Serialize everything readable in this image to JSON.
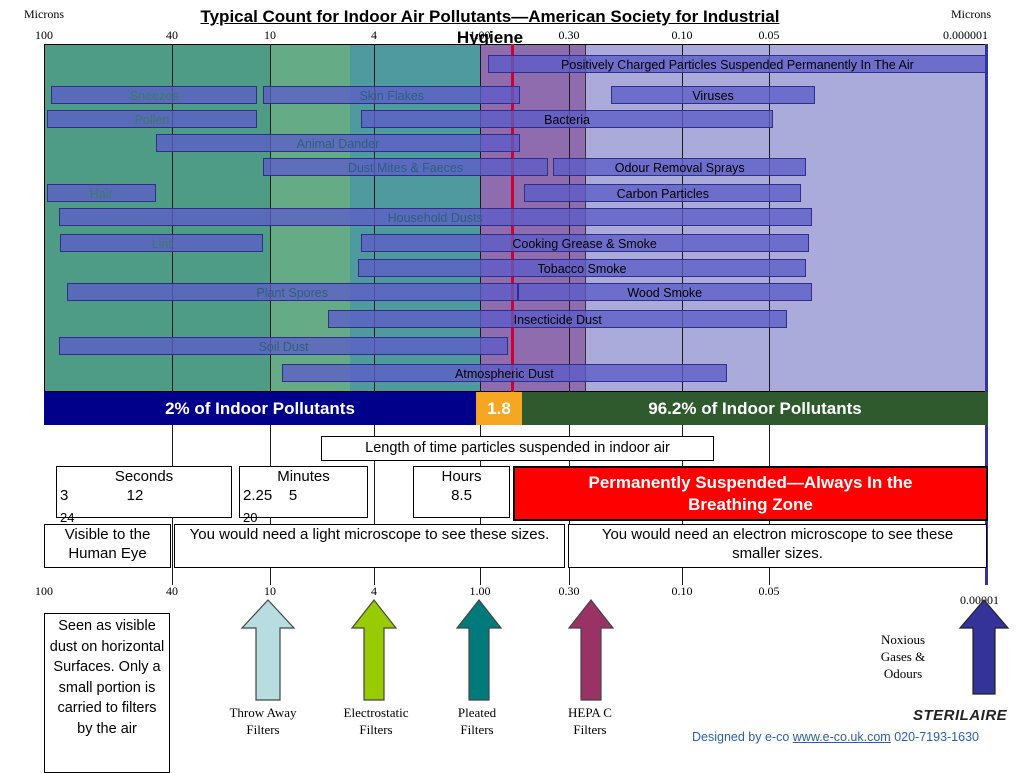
{
  "chart_data": {
    "type": "bar",
    "title": "Typical Count for Indoor Air Pollutants—American Society for Industrial Hygiene",
    "axis_label_left": "Microns",
    "axis_label_right": "Microns",
    "scale": "log",
    "xlim": [
      100,
      1e-06
    ],
    "ticks": [
      {
        "value": 100,
        "label": "100"
      },
      {
        "value": 40,
        "label": "40"
      },
      {
        "value": 10,
        "label": "10"
      },
      {
        "value": 4,
        "label": "4"
      },
      {
        "value": 1,
        "label": "1.00"
      },
      {
        "value": 0.3,
        "label": "0.30"
      },
      {
        "value": 0.1,
        "label": "0.10"
      },
      {
        "value": 0.05,
        "label": "0.05"
      }
    ],
    "right_end_label_top": "0.000001",
    "right_end_label_bottom": "0.00001",
    "series": [
      {
        "name": "Positively Charged Particles Suspended Permanently In The Air",
        "from": 0.9,
        "to": 1e-06
      },
      {
        "name": "Sneezes",
        "from": 95,
        "to": 12
      },
      {
        "name": "Skin Flakes",
        "from": 11,
        "to": 0.58
      },
      {
        "name": "Viruses",
        "from": 0.2,
        "to": 0.005
      },
      {
        "name": "Pollen",
        "from": 98,
        "to": 12
      },
      {
        "name": "Bacteria",
        "from": 4.5,
        "to": 0.04
      },
      {
        "name": "Animal Dander",
        "from": 45,
        "to": 0.58
      },
      {
        "name": "Dust Mites & Faeces",
        "from": 11,
        "to": 0.4
      },
      {
        "name": "Odour Removal Sprays",
        "from": 0.37,
        "to": 0.008
      },
      {
        "name": "Hair",
        "from": 98,
        "to": 45
      },
      {
        "name": "Carbon Particles",
        "from": 0.55,
        "to": 0.01
      },
      {
        "name": "Household Dusts",
        "from": 90,
        "to": 0.006
      },
      {
        "name": "Lint",
        "from": 89,
        "to": 11
      },
      {
        "name": "Cooking Grease & Smoke",
        "from": 4.5,
        "to": 0.007
      },
      {
        "name": "Tobacco Smoke",
        "from": 4.6,
        "to": 0.008
      },
      {
        "name": "Plant Spores",
        "from": 85,
        "to": 0.6
      },
      {
        "name": "Wood Smoke",
        "from": 0.6,
        "to": 0.006
      },
      {
        "name": "Insecticide Dust",
        "from": 6,
        "to": 0.02
      },
      {
        "name": "Soil Dust",
        "from": 90,
        "to": 0.68
      },
      {
        "name": "Atmospheric Dust",
        "from": 9,
        "to": 0.07
      }
    ]
  },
  "shares": {
    "left": "2% of Indoor Pollutants",
    "middle": "1.8",
    "right": "96.2% of Indoor Pollutants"
  },
  "suspension": {
    "header": "Length of time particles suspended in indoor air",
    "seconds_title": "Seconds",
    "seconds_values": "3              12",
    "seconds_overflow": "24",
    "minutes_title": "Minutes",
    "minutes_values": "2.25    5",
    "minutes_overflow": "20",
    "hours_title": "Hours",
    "hours_values": "8.5",
    "permanent": "Permanently Suspended—Always In the Breathing Zone"
  },
  "visibility": {
    "eye": "Visible to the Human Eye",
    "light": "You would need a light microscope to see these sizes.",
    "electron": "You would need an electron microscope to see these smaller sizes."
  },
  "note": "Seen as visible dust on horizontal Surfaces. Only a small portion is carried to filters by the air",
  "filters": {
    "throw": "Throw Away Filters",
    "electrostatic": "Electrostatic Filters",
    "pleated": "Pleated Filters",
    "hepa": "HEPA C Filters",
    "noxious": "Noxious Gases & Odours"
  },
  "colors": {
    "navy_band": "#00008b",
    "orange_band": "#f5a623",
    "green_band": "#2e5a2e",
    "permanent_red": "#ff0000",
    "arrow_throw": "#b8dde0",
    "arrow_electro": "#99cc00",
    "arrow_pleated": "#007a7a",
    "arrow_hepa": "#993366",
    "arrow_noxious": "#333399"
  },
  "brand": "STERILAIRE",
  "credit": {
    "prefix": "Designed by e-co ",
    "link": "www.e-co.uk.com",
    "phone": " 020-7193-1630"
  }
}
